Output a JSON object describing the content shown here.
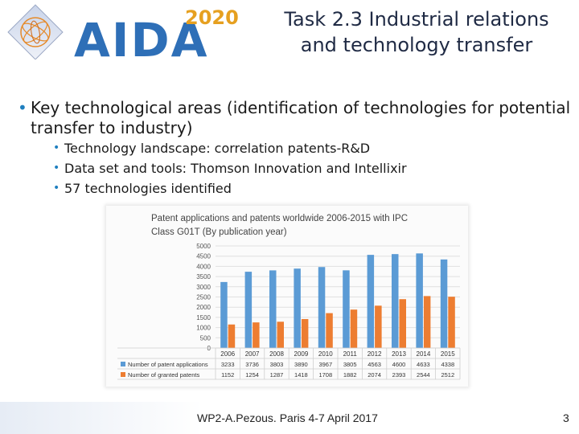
{
  "logo": {
    "word": "AIDA",
    "year": "2020"
  },
  "title": {
    "line1": "Task 2.3 Industrial relations",
    "line2": "and technology transfer"
  },
  "bullets": {
    "main": "Key technological areas (identification of technologies for potential transfer to industry)",
    "sub": [
      "Technology landscape: correlation patents-R&D",
      "Data set and tools: Thomson Innovation and Intellixir",
      "57 technologies identified"
    ]
  },
  "chart_data": {
    "type": "bar",
    "title": "Patent applications and patents worldwide 2006-2015 with IPC Class G01T (By publication year)",
    "categories": [
      "2006",
      "2007",
      "2008",
      "2009",
      "2010",
      "2011",
      "2012",
      "2013",
      "2014",
      "2015"
    ],
    "series": [
      {
        "name": "Number of patent applications",
        "color": "#5b9bd5",
        "values": [
          3233,
          3736,
          3803,
          3890,
          3967,
          3805,
          4563,
          4600,
          4633,
          4338
        ]
      },
      {
        "name": "Number of granted patents",
        "color": "#ed7d31",
        "values": [
          1152,
          1254,
          1287,
          1418,
          1708,
          1882,
          2074,
          2393,
          2544,
          2512
        ]
      }
    ],
    "yticks": [
      "0",
      "500",
      "1000",
      "1500",
      "2000",
      "2500",
      "3000",
      "3500",
      "4000",
      "4500",
      "5000"
    ],
    "ylim": [
      0,
      5000
    ],
    "grid": true,
    "legend": "bottom-table"
  },
  "footer": {
    "text": "WP2-A.Pezous. Paris 4-7 April 2017",
    "page": "3"
  },
  "colors": {
    "accent": "#1f7fbf",
    "title": "#1f2a44",
    "logo_blue": "#2e6fb7",
    "logo_gold": "#e6a020"
  }
}
